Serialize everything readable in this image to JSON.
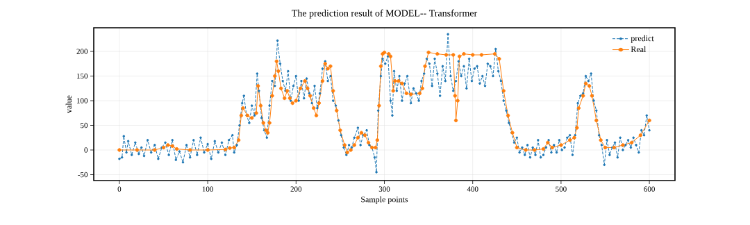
{
  "chart_data": {
    "type": "line",
    "title": "The prediction result of MODEL-- Transformer",
    "xlabel": "Sample points",
    "ylabel": "value",
    "xlim": [
      -29,
      629
    ],
    "ylim": [
      -62,
      248
    ],
    "xticks": [
      0,
      100,
      200,
      300,
      400,
      500,
      600
    ],
    "yticks": [
      -50,
      0,
      50,
      100,
      150,
      200
    ],
    "grid": true,
    "legend": "top right",
    "marker": "circle",
    "series": [
      {
        "name": "predict",
        "color": "#1f77b4",
        "line_style": "dashed",
        "x": [
          0,
          3,
          5,
          8,
          10,
          14,
          18,
          22,
          25,
          28,
          32,
          36,
          40,
          44,
          48,
          52,
          56,
          60,
          64,
          68,
          72,
          76,
          80,
          84,
          88,
          92,
          96,
          100,
          104,
          108,
          112,
          116,
          120,
          124,
          128,
          130,
          133,
          136,
          139,
          141,
          144,
          147,
          150,
          153,
          156,
          158,
          161,
          164,
          167,
          170,
          173,
          176,
          179,
          182,
          185,
          188,
          191,
          194,
          197,
          200,
          203,
          206,
          209,
          212,
          215,
          218,
          221,
          224,
          227,
          230,
          233,
          236,
          239,
          242,
          245,
          248,
          251,
          254,
          257,
          260,
          263,
          266,
          270,
          273,
          276,
          280,
          283,
          286,
          289,
          291,
          293,
          296,
          298,
          301,
          304,
          307,
          309,
          311,
          314,
          317,
          320,
          323,
          326,
          330,
          333,
          336,
          339,
          342,
          345,
          348,
          351,
          354,
          357,
          360,
          363,
          366,
          369,
          372,
          375,
          378,
          381,
          384,
          387,
          390,
          393,
          396,
          399,
          402,
          405,
          408,
          411,
          414,
          417,
          420,
          423,
          426,
          429,
          432,
          435,
          438,
          441,
          444,
          447,
          450,
          453,
          456,
          459,
          462,
          465,
          468,
          471,
          474,
          477,
          480,
          483,
          486,
          489,
          492,
          495,
          498,
          501,
          504,
          507,
          510,
          513,
          516,
          519,
          522,
          525,
          528,
          531,
          534,
          537,
          540,
          543,
          546,
          549,
          552,
          555,
          558,
          561,
          564,
          567,
          570,
          573,
          576,
          579,
          582,
          585,
          588,
          591,
          594,
          597,
          600
        ],
        "values": [
          -18,
          -15,
          28,
          -5,
          18,
          -10,
          15,
          -8,
          5,
          -12,
          20,
          -5,
          10,
          -18,
          5,
          15,
          -10,
          20,
          -20,
          -3,
          -25,
          10,
          -15,
          20,
          -10,
          25,
          -5,
          12,
          -18,
          18,
          -5,
          15,
          -10,
          20,
          30,
          -5,
          10,
          50,
          95,
          110,
          70,
          55,
          90,
          70,
          155,
          120,
          65,
          40,
          25,
          90,
          140,
          130,
          222,
          175,
          140,
          120,
          160,
          100,
          130,
          150,
          100,
          140,
          105,
          145,
          115,
          95,
          130,
          85,
          115,
          165,
          180,
          140,
          150,
          100,
          90,
          60,
          30,
          5,
          -10,
          10,
          5,
          25,
          45,
          10,
          30,
          40,
          10,
          5,
          -15,
          -45,
          80,
          150,
          185,
          175,
          190,
          100,
          70,
          160,
          120,
          150,
          100,
          135,
          150,
          95,
          125,
          115,
          100,
          140,
          155,
          185,
          175,
          130,
          185,
          155,
          110,
          170,
          140,
          235,
          150,
          120,
          140,
          180,
          150,
          170,
          125,
          185,
          140,
          165,
          170,
          135,
          150,
          130,
          175,
          170,
          150,
          205,
          160,
          140,
          100,
          80,
          55,
          35,
          15,
          25,
          -5,
          5,
          -10,
          10,
          -15,
          5,
          -10,
          20,
          -15,
          -10,
          5,
          20,
          -5,
          10,
          -5,
          20,
          0,
          5,
          25,
          30,
          -10,
          30,
          95,
          110,
          115,
          150,
          140,
          155,
          100,
          80,
          30,
          10,
          -30,
          20,
          -10,
          5,
          15,
          -15,
          25,
          0,
          10,
          20,
          5,
          25,
          10,
          -5,
          40,
          30,
          70,
          40
        ]
      },
      {
        "name": "Real",
        "color": "#ff7f0e",
        "line_style": "solid",
        "x": [
          0,
          20,
          40,
          50,
          55,
          60,
          65,
          80,
          100,
          120,
          125,
          130,
          135,
          138,
          140,
          145,
          150,
          155,
          157,
          160,
          163,
          166,
          168,
          170,
          173,
          176,
          178,
          180,
          183,
          187,
          190,
          193,
          196,
          200,
          205,
          210,
          213,
          216,
          220,
          223,
          226,
          230,
          233,
          236,
          239,
          242,
          246,
          250,
          255,
          258,
          262,
          266,
          270,
          274,
          278,
          282,
          286,
          290,
          292,
          294,
          296,
          298,
          300,
          305,
          307,
          310,
          312,
          316,
          320,
          325,
          330,
          340,
          343,
          346,
          350,
          360,
          370,
          378,
          380,
          381,
          383,
          385,
          390,
          400,
          410,
          425,
          430,
          435,
          440,
          445,
          450,
          460,
          470,
          480,
          485,
          490,
          500,
          510,
          515,
          518,
          520,
          525,
          528,
          532,
          535,
          540,
          545,
          550,
          560,
          570,
          580,
          590,
          600
        ],
        "values": [
          0,
          0,
          0,
          5,
          10,
          8,
          2,
          0,
          0,
          1,
          4,
          5,
          20,
          70,
          85,
          70,
          65,
          75,
          130,
          90,
          55,
          40,
          35,
          55,
          110,
          150,
          180,
          160,
          125,
          105,
          120,
          105,
          95,
          100,
          125,
          140,
          125,
          110,
          85,
          70,
          95,
          140,
          175,
          165,
          170,
          120,
          80,
          40,
          10,
          -5,
          0,
          10,
          25,
          35,
          30,
          15,
          5,
          5,
          20,
          90,
          170,
          195,
          198,
          195,
          190,
          120,
          140,
          140,
          135,
          115,
          113,
          115,
          125,
          170,
          198,
          195,
          193,
          193,
          110,
          60,
          100,
          190,
          195,
          193,
          193,
          195,
          185,
          120,
          70,
          35,
          5,
          0,
          0,
          2,
          15,
          5,
          10,
          20,
          25,
          45,
          85,
          110,
          135,
          130,
          110,
          60,
          20,
          5,
          5,
          10,
          15,
          30,
          60
        ]
      }
    ]
  }
}
